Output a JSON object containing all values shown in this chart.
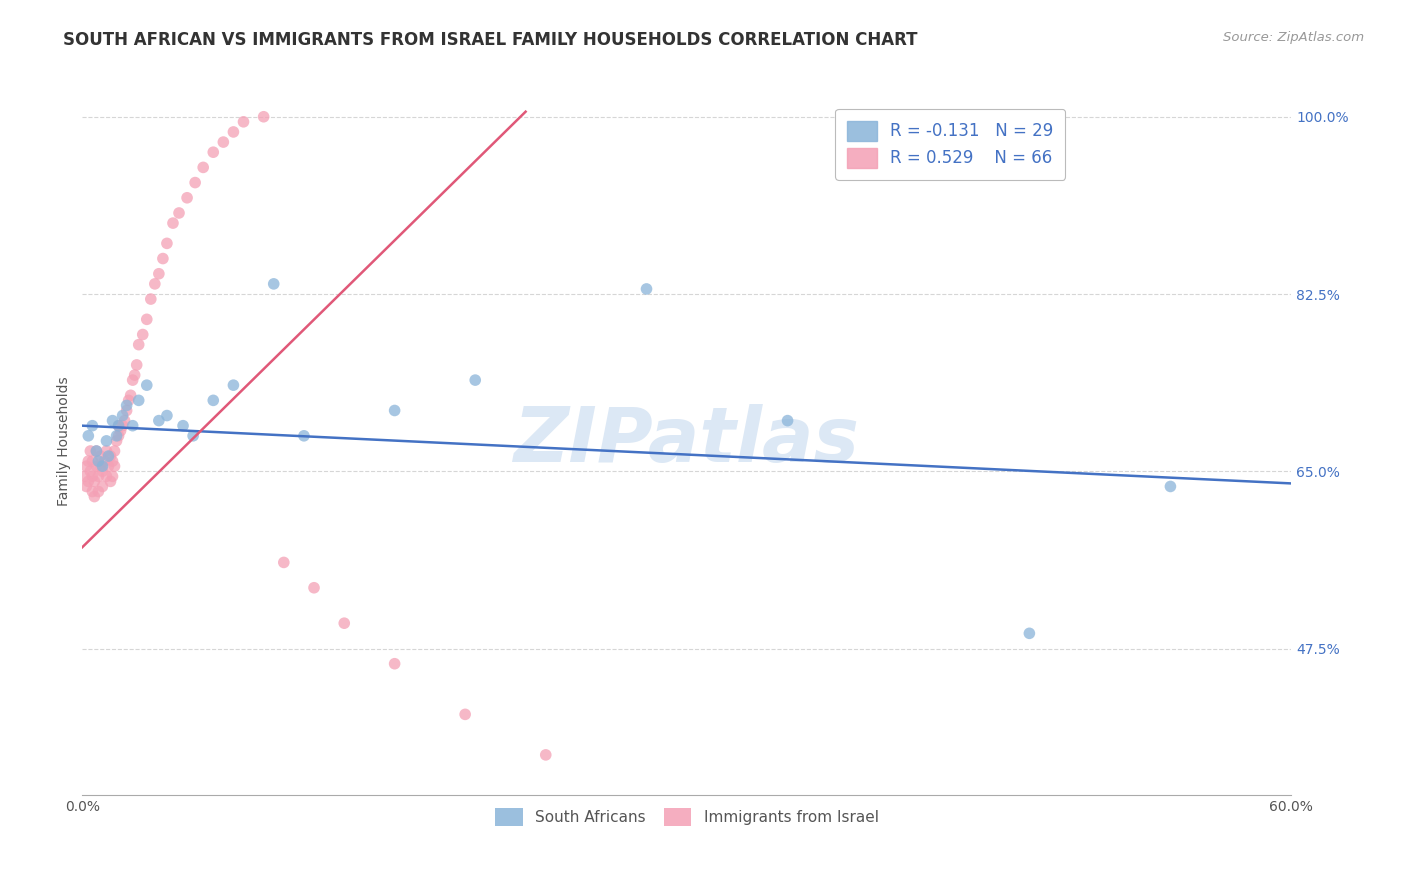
{
  "title": "SOUTH AFRICAN VS IMMIGRANTS FROM ISRAEL FAMILY HOUSEHOLDS CORRELATION CHART",
  "source": "Source: ZipAtlas.com",
  "ylabel": "Family Households",
  "xlim": [
    0.0,
    0.6
  ],
  "ylim": [
    0.33,
    1.03
  ],
  "xticks": [
    0.0,
    0.12,
    0.24,
    0.36,
    0.48,
    0.6
  ],
  "xticklabels": [
    "0.0%",
    "",
    "",
    "",
    "",
    "60.0%"
  ],
  "yticks": [
    0.475,
    0.65,
    0.825,
    1.0
  ],
  "yticklabels": [
    "47.5%",
    "65.0%",
    "82.5%",
    "100.0%"
  ],
  "legend_label_blue": "R = -0.131   N = 29",
  "legend_label_pink": "R = 0.529    N = 66",
  "watermark": "ZIPatlas",
  "blue_scatter_x": [
    0.003,
    0.005,
    0.007,
    0.008,
    0.01,
    0.012,
    0.013,
    0.015,
    0.017,
    0.018,
    0.02,
    0.022,
    0.025,
    0.028,
    0.032,
    0.038,
    0.042,
    0.05,
    0.055,
    0.065,
    0.075,
    0.095,
    0.11,
    0.155,
    0.195,
    0.28,
    0.35,
    0.47,
    0.54
  ],
  "blue_scatter_y": [
    0.685,
    0.695,
    0.67,
    0.66,
    0.655,
    0.68,
    0.665,
    0.7,
    0.685,
    0.695,
    0.705,
    0.715,
    0.695,
    0.72,
    0.735,
    0.7,
    0.705,
    0.695,
    0.685,
    0.72,
    0.735,
    0.835,
    0.685,
    0.71,
    0.74,
    0.83,
    0.7,
    0.49,
    0.635
  ],
  "pink_scatter_x": [
    0.001,
    0.002,
    0.002,
    0.003,
    0.003,
    0.004,
    0.004,
    0.005,
    0.005,
    0.005,
    0.006,
    0.006,
    0.007,
    0.007,
    0.008,
    0.008,
    0.009,
    0.009,
    0.01,
    0.01,
    0.011,
    0.012,
    0.012,
    0.013,
    0.014,
    0.014,
    0.015,
    0.015,
    0.016,
    0.016,
    0.017,
    0.018,
    0.018,
    0.019,
    0.02,
    0.021,
    0.022,
    0.023,
    0.024,
    0.025,
    0.026,
    0.027,
    0.028,
    0.03,
    0.032,
    0.034,
    0.036,
    0.038,
    0.04,
    0.042,
    0.045,
    0.048,
    0.052,
    0.056,
    0.06,
    0.065,
    0.07,
    0.075,
    0.08,
    0.09,
    0.1,
    0.115,
    0.13,
    0.155,
    0.19,
    0.23
  ],
  "pink_scatter_y": [
    0.645,
    0.635,
    0.655,
    0.64,
    0.66,
    0.65,
    0.67,
    0.63,
    0.645,
    0.66,
    0.625,
    0.64,
    0.655,
    0.67,
    0.63,
    0.645,
    0.655,
    0.665,
    0.635,
    0.65,
    0.66,
    0.645,
    0.67,
    0.655,
    0.64,
    0.665,
    0.66,
    0.645,
    0.655,
    0.67,
    0.68,
    0.685,
    0.695,
    0.69,
    0.695,
    0.7,
    0.71,
    0.72,
    0.725,
    0.74,
    0.745,
    0.755,
    0.775,
    0.785,
    0.8,
    0.82,
    0.835,
    0.845,
    0.86,
    0.875,
    0.895,
    0.905,
    0.92,
    0.935,
    0.95,
    0.965,
    0.975,
    0.985,
    0.995,
    1.0,
    0.56,
    0.535,
    0.5,
    0.46,
    0.41,
    0.37
  ],
  "blue_line_x": [
    0.0,
    0.6
  ],
  "blue_line_y": [
    0.695,
    0.638
  ],
  "pink_line_x": [
    0.0,
    0.22
  ],
  "pink_line_y": [
    0.575,
    1.005
  ],
  "title_fontsize": 12,
  "source_fontsize": 9.5,
  "axis_label_fontsize": 10,
  "tick_fontsize": 10,
  "background_color": "#ffffff",
  "grid_color": "#cccccc",
  "blue_color": "#8ab4d9",
  "pink_color": "#f4a0b5",
  "blue_line_color": "#4472c4",
  "pink_line_color": "#e05878",
  "scatter_alpha": 0.75,
  "scatter_size": 70,
  "watermark_color": "#dce8f5",
  "watermark_fontsize": 55,
  "tick_color_y": "#4472c4",
  "tick_color_x": "#555555"
}
